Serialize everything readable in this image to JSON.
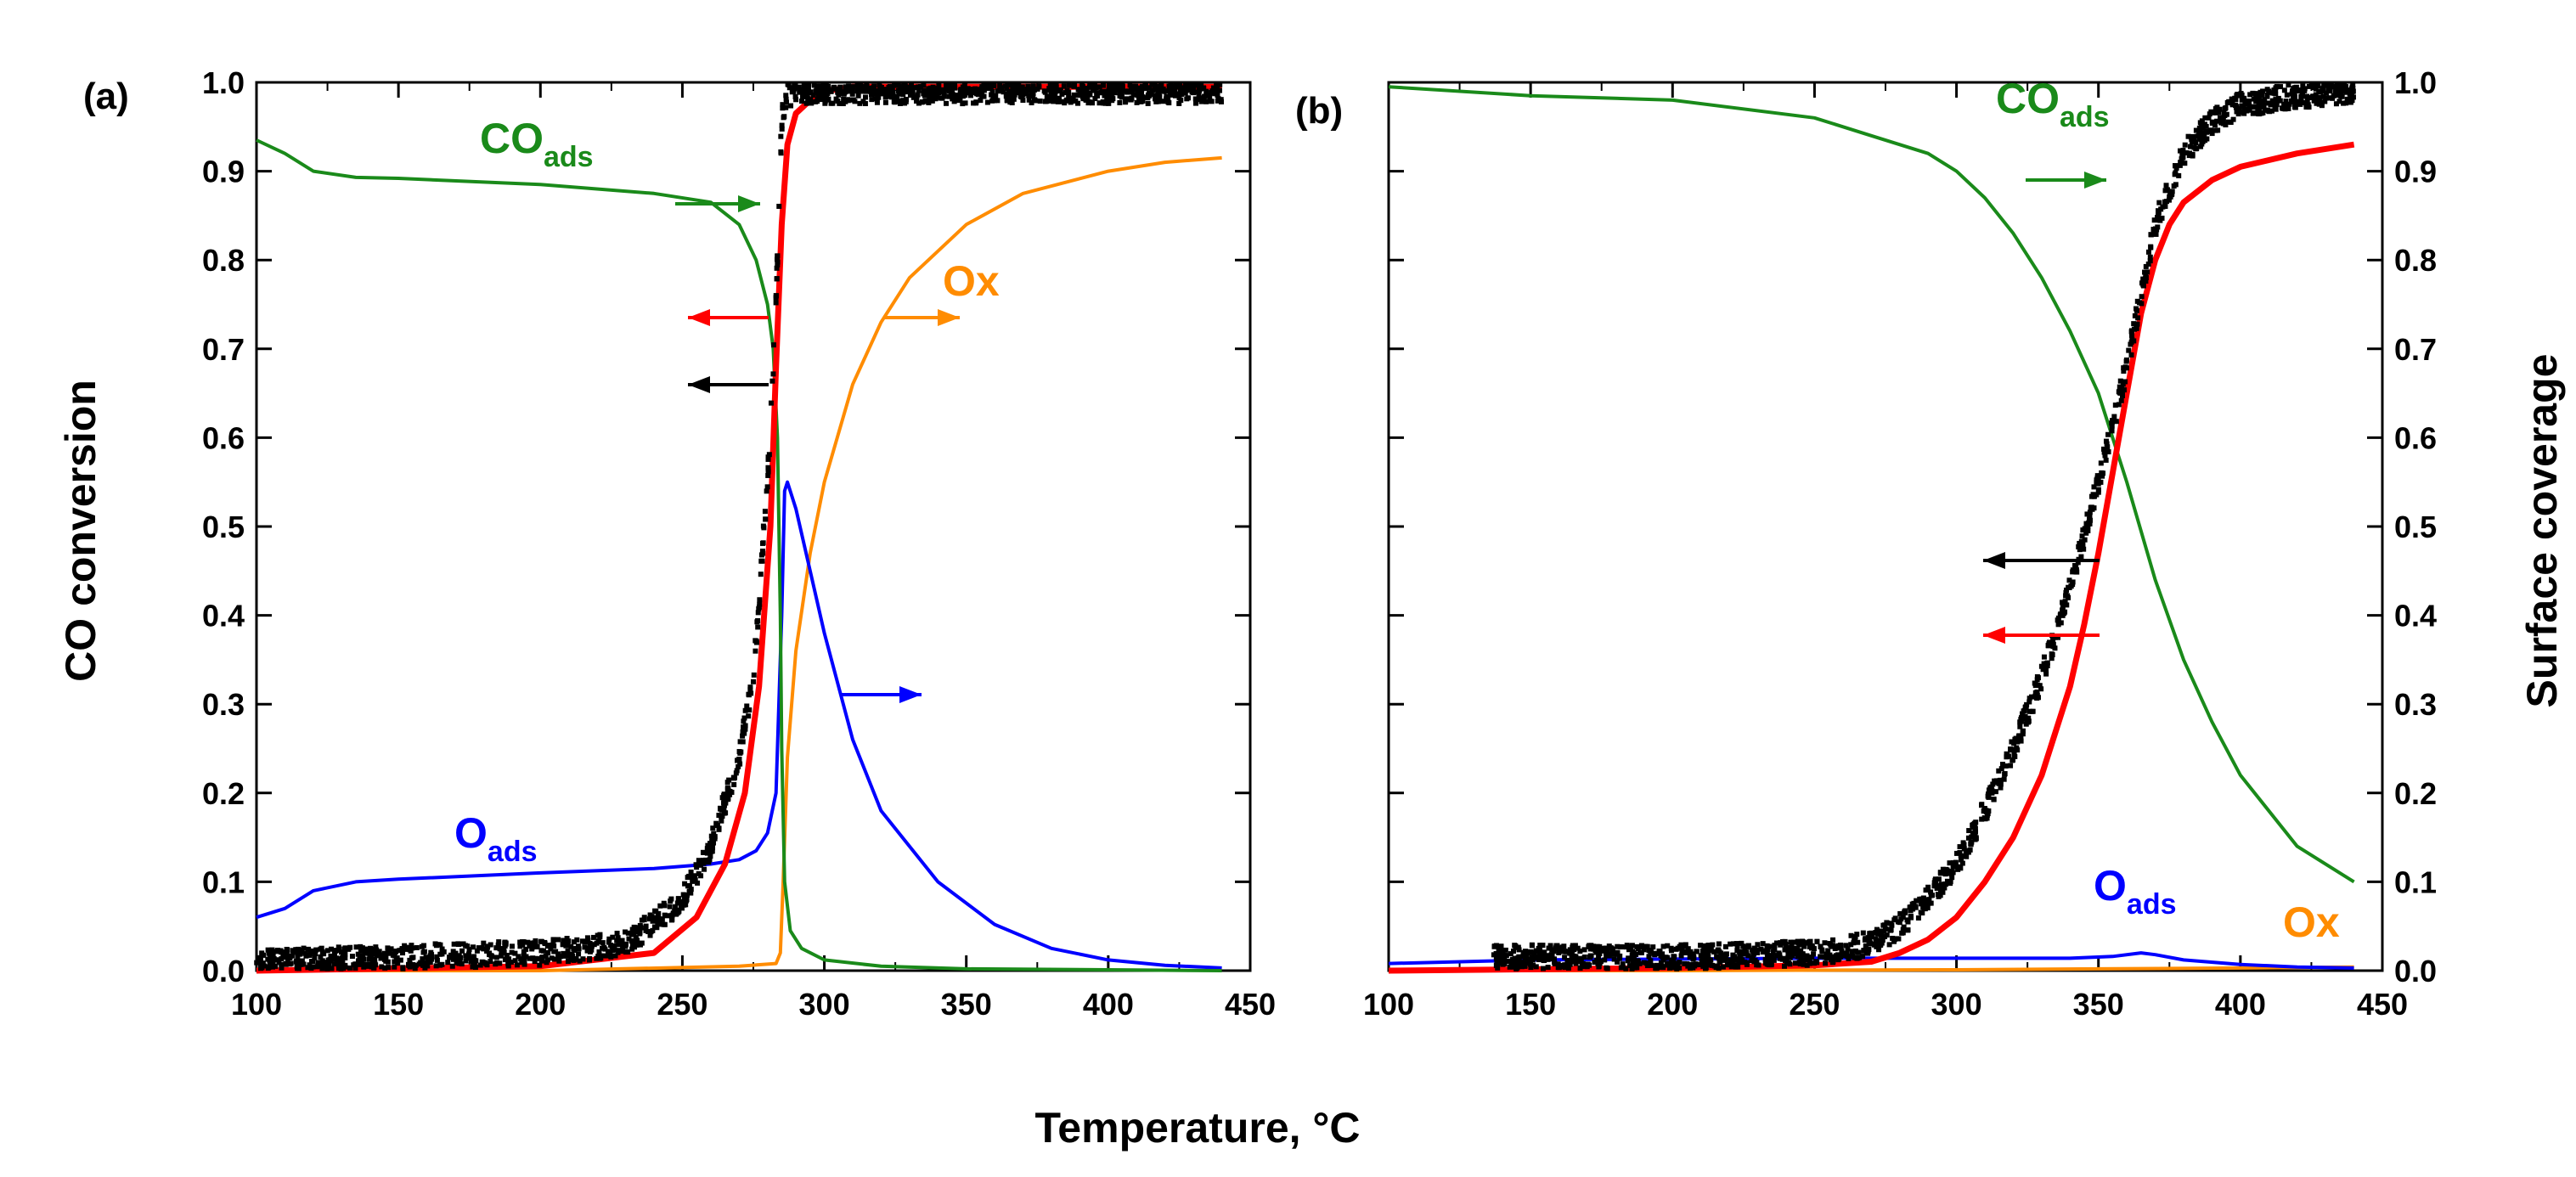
{
  "figure": {
    "shared_xlabel": "Temperature, °C",
    "left_ylabel": "CO conversion",
    "right_ylabel": "Surface coverage"
  },
  "colors": {
    "measured": "#000000",
    "model_conversion": "#ff0000",
    "CO_ads": "#1a8a1a",
    "O_ads": "#0000ff",
    "Ox": "#ff8c00"
  },
  "chart_data": [
    {
      "type": "line",
      "panel_label": "(a)",
      "xlabel": "Temperature, °C",
      "ylabel": "CO conversion",
      "xlim": [
        100,
        450
      ],
      "ylim": [
        0.0,
        1.0
      ],
      "x_ticks": [
        "100",
        "150",
        "200",
        "250",
        "300",
        "350",
        "400",
        "450"
      ],
      "y_ticks": [
        "0.0",
        "0.1",
        "0.2",
        "0.3",
        "0.4",
        "0.5",
        "0.6",
        "0.7",
        "0.8",
        "0.9",
        "1.0"
      ],
      "series": [
        {
          "name": "Measured CO conversion",
          "style": "scatter",
          "color": "#000000",
          "axis": "left",
          "x": [
            100,
            150,
            200,
            230,
            250,
            260,
            270,
            275,
            280,
            283,
            285,
            287,
            290,
            300,
            350,
            400,
            440
          ],
          "y": [
            0.01,
            0.015,
            0.02,
            0.03,
            0.08,
            0.14,
            0.24,
            0.33,
            0.55,
            0.75,
            0.96,
            0.985,
            0.99,
            0.99,
            0.99,
            0.99,
            0.99
          ]
        },
        {
          "name": "Model CO conversion",
          "color": "#ff0000",
          "axis": "left",
          "x": [
            100,
            200,
            240,
            255,
            265,
            272,
            277,
            281,
            283,
            285,
            287,
            290,
            295,
            300,
            310,
            440
          ],
          "y": [
            0.0,
            0.005,
            0.02,
            0.06,
            0.12,
            0.2,
            0.32,
            0.5,
            0.68,
            0.84,
            0.93,
            0.965,
            0.98,
            0.99,
            0.995,
            0.995
          ]
        },
        {
          "name": "CO",
          "subscript": "ads",
          "color": "#1a8a1a",
          "axis": "right",
          "x": [
            100,
            110,
            120,
            135,
            150,
            200,
            240,
            260,
            270,
            276,
            280,
            282,
            283.5,
            284.5,
            285,
            286,
            288,
            292,
            300,
            320,
            350,
            400,
            440
          ],
          "y": [
            0.935,
            0.92,
            0.9,
            0.893,
            0.892,
            0.885,
            0.875,
            0.865,
            0.84,
            0.8,
            0.75,
            0.7,
            0.6,
            0.4,
            0.25,
            0.1,
            0.045,
            0.025,
            0.012,
            0.005,
            0.002,
            0.001,
            0.0
          ]
        },
        {
          "name": "O",
          "subscript": "ads",
          "color": "#0000ff",
          "axis": "right",
          "x": [
            100,
            110,
            120,
            135,
            150,
            200,
            240,
            260,
            270,
            276,
            280,
            283,
            285,
            286,
            287,
            290,
            295,
            300,
            310,
            320,
            340,
            360,
            380,
            400,
            420,
            440
          ],
          "y": [
            0.06,
            0.07,
            0.09,
            0.1,
            0.103,
            0.11,
            0.115,
            0.12,
            0.125,
            0.135,
            0.155,
            0.2,
            0.4,
            0.54,
            0.55,
            0.52,
            0.45,
            0.38,
            0.26,
            0.18,
            0.1,
            0.052,
            0.025,
            0.012,
            0.006,
            0.003
          ]
        },
        {
          "name": "Ox",
          "color": "#ff8c00",
          "axis": "right",
          "x": [
            100,
            200,
            270,
            283,
            284.5,
            285.5,
            287,
            290,
            295,
            300,
            310,
            320,
            330,
            350,
            370,
            400,
            420,
            440
          ],
          "y": [
            0.0,
            0.0,
            0.005,
            0.008,
            0.02,
            0.1,
            0.24,
            0.36,
            0.47,
            0.55,
            0.66,
            0.73,
            0.78,
            0.84,
            0.875,
            0.9,
            0.91,
            0.915
          ]
        }
      ],
      "annotations": [
        {
          "text": "CO",
          "sub": "ads",
          "color": "#1a8a1a",
          "arrow": "right"
        },
        {
          "text": "O",
          "sub": "ads",
          "color": "#0000ff",
          "arrow": "right"
        },
        {
          "text": "Ox",
          "sub": "",
          "color": "#ff8c00",
          "arrow": "right"
        },
        {
          "text": "",
          "sub": "",
          "color": "#ff0000",
          "arrow": "left"
        },
        {
          "text": "",
          "sub": "",
          "color": "#000000",
          "arrow": "left"
        }
      ]
    },
    {
      "type": "line",
      "panel_label": "(b)",
      "xlabel": "Temperature, °C",
      "ylabel": "Surface coverage",
      "xlim": [
        100,
        450
      ],
      "ylim": [
        0.0,
        1.0
      ],
      "x_ticks": [
        "100",
        "150",
        "200",
        "250",
        "300",
        "350",
        "400",
        "450"
      ],
      "y_ticks": [
        "0.0",
        "0.1",
        "0.2",
        "0.3",
        "0.4",
        "0.5",
        "0.6",
        "0.7",
        "0.8",
        "0.9",
        "1.0"
      ],
      "series": [
        {
          "name": "Measured CO conversion",
          "style": "scatter",
          "color": "#000000",
          "axis": "left",
          "x": [
            137,
            150,
            200,
            250,
            270,
            280,
            290,
            300,
            310,
            320,
            330,
            340,
            350,
            360,
            370,
            380,
            390,
            400,
            420,
            440
          ],
          "y": [
            0.015,
            0.015,
            0.015,
            0.02,
            0.03,
            0.05,
            0.08,
            0.12,
            0.18,
            0.25,
            0.33,
            0.43,
            0.55,
            0.68,
            0.84,
            0.92,
            0.955,
            0.975,
            0.985,
            0.99
          ]
        },
        {
          "name": "Model CO conversion",
          "color": "#ff0000",
          "axis": "left",
          "x": [
            100,
            200,
            250,
            270,
            280,
            290,
            300,
            310,
            320,
            330,
            340,
            345,
            350,
            355,
            360,
            365,
            370,
            375,
            380,
            390,
            400,
            420,
            440
          ],
          "y": [
            0.0,
            0.003,
            0.006,
            0.01,
            0.02,
            0.035,
            0.06,
            0.1,
            0.15,
            0.22,
            0.32,
            0.39,
            0.47,
            0.56,
            0.65,
            0.74,
            0.8,
            0.84,
            0.865,
            0.89,
            0.905,
            0.92,
            0.93
          ]
        },
        {
          "name": "CO",
          "subscript": "ads",
          "color": "#1a8a1a",
          "axis": "right",
          "x": [
            100,
            150,
            200,
            250,
            270,
            290,
            300,
            310,
            320,
            330,
            340,
            350,
            355,
            360,
            370,
            380,
            390,
            400,
            420,
            440
          ],
          "y": [
            0.995,
            0.985,
            0.98,
            0.96,
            0.94,
            0.92,
            0.9,
            0.87,
            0.83,
            0.78,
            0.72,
            0.65,
            0.6,
            0.55,
            0.44,
            0.35,
            0.28,
            0.22,
            0.14,
            0.1
          ]
        },
        {
          "name": "O",
          "subscript": "ads",
          "color": "#0000ff",
          "axis": "right",
          "x": [
            100,
            150,
            200,
            250,
            300,
            340,
            355,
            365,
            370,
            380,
            400,
            420,
            440
          ],
          "y": [
            0.008,
            0.012,
            0.013,
            0.014,
            0.014,
            0.014,
            0.016,
            0.02,
            0.018,
            0.012,
            0.007,
            0.004,
            0.003
          ]
        },
        {
          "name": "Ox",
          "color": "#ff8c00",
          "axis": "right",
          "x": [
            100,
            200,
            300,
            350,
            400,
            440
          ],
          "y": [
            0.0,
            0.0,
            0.001,
            0.002,
            0.003,
            0.004
          ]
        }
      ],
      "annotations": [
        {
          "text": "CO",
          "sub": "ads",
          "color": "#1a8a1a",
          "arrow": "right"
        },
        {
          "text": "O",
          "sub": "ads",
          "color": "#0000ff",
          "arrow": "none"
        },
        {
          "text": "Ox",
          "sub": "",
          "color": "#ff8c00",
          "arrow": "none"
        },
        {
          "text": "",
          "sub": "",
          "color": "#000000",
          "arrow": "left"
        },
        {
          "text": "",
          "sub": "",
          "color": "#ff0000",
          "arrow": "left"
        }
      ]
    }
  ]
}
